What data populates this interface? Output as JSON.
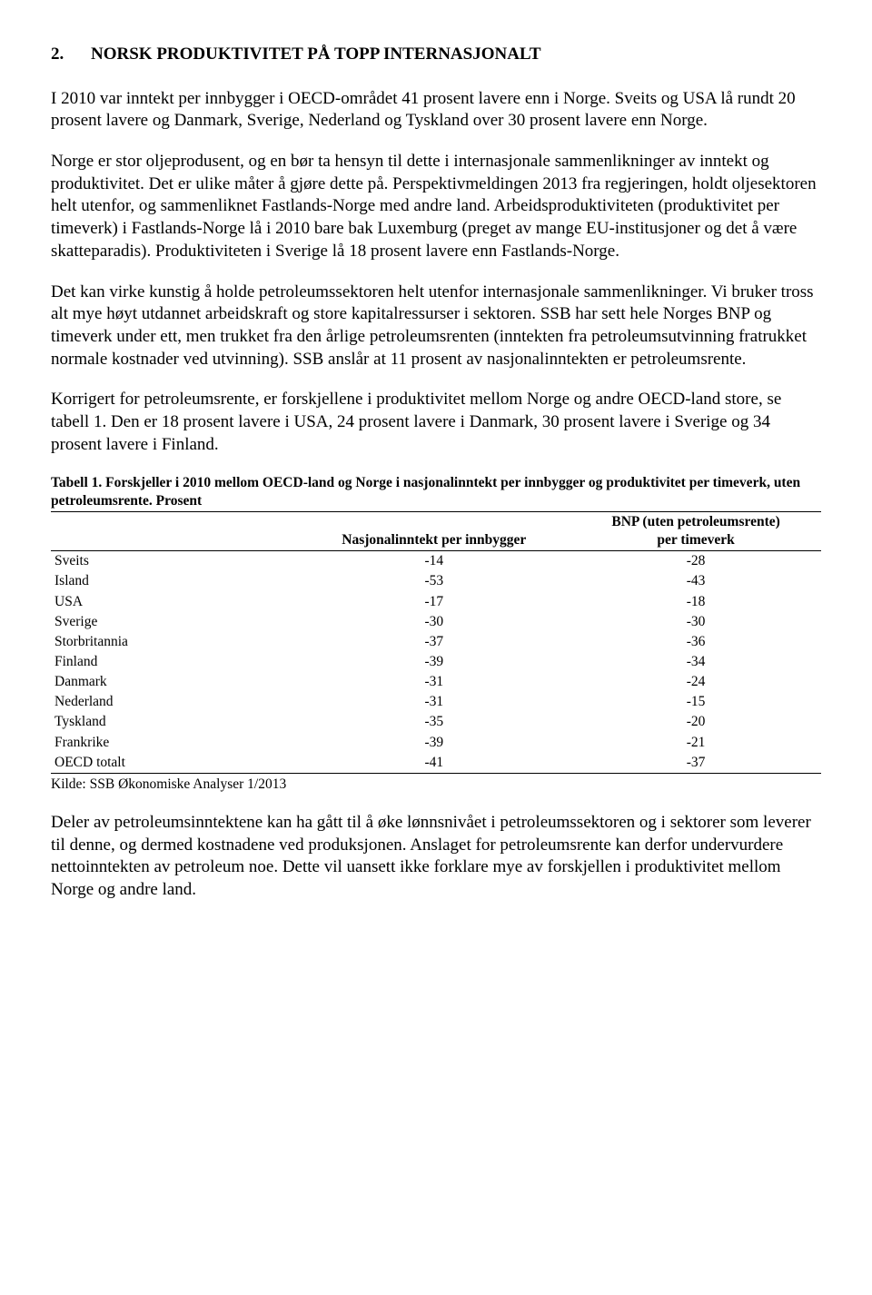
{
  "heading": {
    "number": "2.",
    "title": "NORSK PRODUKTIVITET PÅ TOPP INTERNASJONALT"
  },
  "paragraphs": {
    "p1": "I 2010 var inntekt per innbygger i OECD-området 41 prosent lavere enn i Norge. Sveits og USA lå rundt 20 prosent lavere og Danmark, Sverige, Nederland og Tyskland over 30 prosent lavere enn Norge.",
    "p2": "Norge er stor oljeprodusent, og en bør ta hensyn til dette i internasjonale sammenlikninger av inntekt og produktivitet. Det er ulike måter å gjøre dette på. Perspektivmeldingen 2013 fra regjeringen, holdt oljesektoren helt utenfor, og sammenliknet Fastlands-Norge med andre land. Arbeidsproduktiviteten (produktivitet per timeverk) i Fastlands-Norge lå i 2010 bare bak Luxemburg (preget av mange EU-institusjoner og det å være skatteparadis). Produktiviteten i Sverige lå 18 prosent lavere enn Fastlands-Norge.",
    "p3": "Det kan virke kunstig å holde petroleumssektoren helt utenfor internasjonale sammenlikninger. Vi bruker tross alt mye høyt utdannet arbeidskraft og store kapitalressurser i sektoren. SSB har sett hele Norges BNP og timeverk under ett, men trukket fra den årlige petroleumsrenten (inntekten fra petroleumsutvinning fratrukket normale kostnader ved utvinning). SSB anslår at 11 prosent av nasjonalinntekten er petroleumsrente.",
    "p4": "Korrigert for petroleumsrente, er forskjellene i produktivitet mellom Norge og andre OECD-land store, se tabell 1. Den er 18 prosent lavere i USA, 24 prosent lavere i Danmark, 30 prosent lavere i Sverige og 34 prosent lavere i Finland.",
    "p5": "Deler av petroleumsinntektene kan ha gått til å øke lønnsnivået i petroleumssektoren og i sektorer som leverer til denne, og dermed kostnadene ved produksjonen. Anslaget for petroleumsrente kan derfor undervurdere nettoinntekten av petroleum noe. Dette vil uansett ikke forklare mye av forskjellen i produktivitet mellom Norge og andre land."
  },
  "table": {
    "caption": "Tabell 1. Forskjeller i 2010 mellom OECD-land og Norge i nasjonalinntekt per innbygger og produktivitet per timeverk, uten petroleumsrente. Prosent",
    "columns": {
      "c0": "",
      "c1": "Nasjonalinntekt per innbygger",
      "c2_line1": "BNP (uten petroleumsrente)",
      "c2_line2": "per timeverk"
    },
    "rows": [
      {
        "country": "Sveits",
        "ni": "-14",
        "bnp": "-28"
      },
      {
        "country": "Island",
        "ni": "-53",
        "bnp": "-43"
      },
      {
        "country": "USA",
        "ni": "-17",
        "bnp": "-18"
      },
      {
        "country": "Sverige",
        "ni": "-30",
        "bnp": "-30"
      },
      {
        "country": "Storbritannia",
        "ni": "-37",
        "bnp": "-36"
      },
      {
        "country": "Finland",
        "ni": "-39",
        "bnp": "-34"
      },
      {
        "country": "Danmark",
        "ni": "-31",
        "bnp": "-24"
      },
      {
        "country": "Nederland",
        "ni": "-31",
        "bnp": "-15"
      },
      {
        "country": "Tyskland",
        "ni": "-35",
        "bnp": "-20"
      },
      {
        "country": "Frankrike",
        "ni": "-39",
        "bnp": "-21"
      },
      {
        "country": "OECD totalt",
        "ni": "-41",
        "bnp": "-37"
      }
    ],
    "source": "Kilde: SSB Økonomiske Analyser 1/2013"
  }
}
